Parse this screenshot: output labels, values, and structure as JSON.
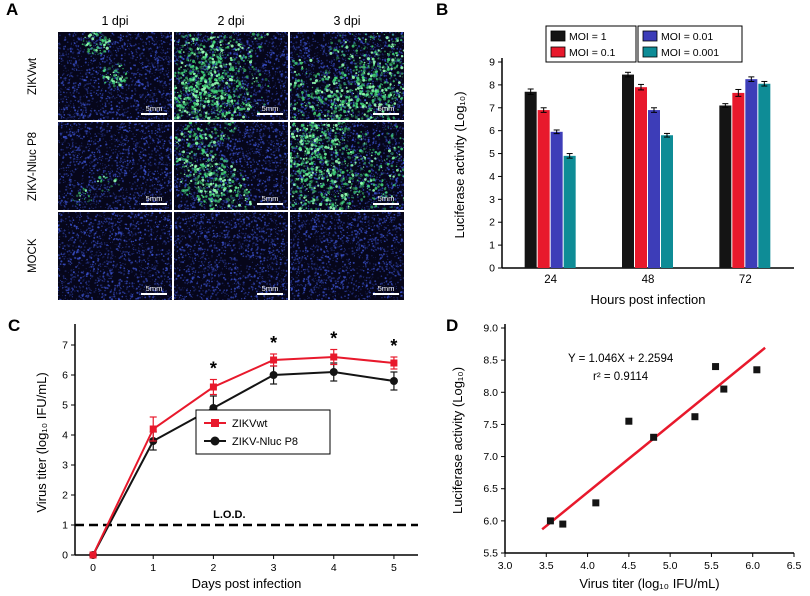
{
  "panelA": {
    "label": "A",
    "col_headers": [
      "1 dpi",
      "2 dpi",
      "3 dpi"
    ],
    "row_labels": [
      "ZIKVwt",
      "ZIKV-Nluc P8",
      "MOCK"
    ],
    "scale_bar_label": "5mm",
    "colors": {
      "background": "#06061a",
      "nuclei": "#4056d8",
      "signal": "#46e27e"
    },
    "green_density": [
      [
        0.12,
        0.85,
        0.8
      ],
      [
        0.03,
        0.45,
        0.95
      ],
      [
        0,
        0,
        0
      ]
    ]
  },
  "panelB": {
    "label": "B"
  },
  "panelC": {
    "label": "C"
  },
  "panelD": {
    "label": "D"
  },
  "chart_data": [
    {
      "id": "B",
      "type": "bar",
      "categories": [
        "24",
        "48",
        "72"
      ],
      "series": [
        {
          "name": "MOI = 1",
          "color": "#141414",
          "values": [
            7.7,
            8.45,
            7.1
          ],
          "errors": [
            0.12,
            0.1,
            0.08
          ]
        },
        {
          "name": "MOI = 0.1",
          "color": "#e8192c",
          "values": [
            6.9,
            7.9,
            7.65
          ],
          "errors": [
            0.1,
            0.12,
            0.15
          ]
        },
        {
          "name": "MOI = 0.01",
          "color": "#3d3db8",
          "values": [
            5.95,
            6.9,
            8.25
          ],
          "errors": [
            0.08,
            0.1,
            0.1
          ]
        },
        {
          "name": "MOI = 0.001",
          "color": "#0e8c96",
          "values": [
            4.9,
            5.8,
            8.05
          ],
          "errors": [
            0.1,
            0.08,
            0.1
          ]
        }
      ],
      "xlabel": "Hours post infection",
      "ylabel": "Luciferase activity (Log₁₀)",
      "ylim": [
        0,
        9
      ],
      "yticks": [
        0,
        1,
        2,
        3,
        4,
        5,
        6,
        7,
        8,
        9
      ],
      "legend_position": "top",
      "grid": false
    },
    {
      "id": "C",
      "type": "line",
      "x": [
        0,
        1,
        2,
        3,
        4,
        5
      ],
      "series": [
        {
          "name": "ZIKVwt",
          "color": "#e8192c",
          "marker": "square",
          "values": [
            0,
            4.2,
            5.6,
            6.5,
            6.6,
            6.4
          ],
          "errors": [
            0,
            0.4,
            0.25,
            0.2,
            0.25,
            0.2
          ]
        },
        {
          "name": "ZIKV-Nluc P8",
          "color": "#141414",
          "marker": "circle",
          "values": [
            0,
            3.8,
            4.9,
            6.0,
            6.1,
            5.8
          ],
          "errors": [
            0,
            0.3,
            0.4,
            0.3,
            0.3,
            0.3
          ]
        }
      ],
      "significance_marker": "*",
      "significance_x": [
        2,
        3,
        4,
        5
      ],
      "lod": {
        "y": 1,
        "label": "L.O.D."
      },
      "xlabel": "Days post infection",
      "ylabel": "Virus titer (log₁₀ IFU/mL)",
      "ylim": [
        0,
        7.5
      ],
      "yticks": [
        0,
        1,
        2,
        3,
        4,
        5,
        6,
        7
      ],
      "xticks": [
        0,
        1,
        2,
        3,
        4,
        5
      ],
      "legend_position": "inside-right",
      "grid": false
    },
    {
      "id": "D",
      "type": "scatter",
      "points": [
        [
          3.55,
          6.0
        ],
        [
          3.7,
          5.95
        ],
        [
          4.1,
          6.28
        ],
        [
          4.5,
          7.55
        ],
        [
          4.8,
          7.3
        ],
        [
          5.3,
          7.62
        ],
        [
          5.55,
          8.4
        ],
        [
          5.65,
          8.05
        ],
        [
          6.05,
          8.35
        ]
      ],
      "marker_color": "#141414",
      "fit": {
        "slope": 1.046,
        "intercept": 2.2594,
        "x_start": 3.45,
        "x_end": 6.15,
        "color": "#e8192c",
        "label_line1": "Y = 1.046X + 2.2594",
        "label_line2": "r² = 0.9114"
      },
      "xlabel": "Virus titer (log₁₀ IFU/mL)",
      "ylabel": "Luciferase activity (Log₁₀)",
      "xlim": [
        3.0,
        6.5
      ],
      "ylim": [
        5.5,
        9.0
      ],
      "xticks": [
        3.0,
        3.5,
        4.0,
        4.5,
        5.0,
        5.5,
        6.0,
        6.5
      ],
      "xtick_labels": [
        "3.0",
        "3.5",
        "4.0",
        "4.5",
        "5.0",
        "5.5",
        "6.0",
        "6.5"
      ],
      "yticks": [
        5.5,
        6.0,
        6.5,
        7.0,
        7.5,
        8.0,
        8.5,
        9.0
      ],
      "ytick_labels": [
        "5.5",
        "6.0",
        "6.5",
        "7.0",
        "7.5",
        "8.0",
        "8.5",
        "9.0"
      ],
      "grid": false
    }
  ]
}
